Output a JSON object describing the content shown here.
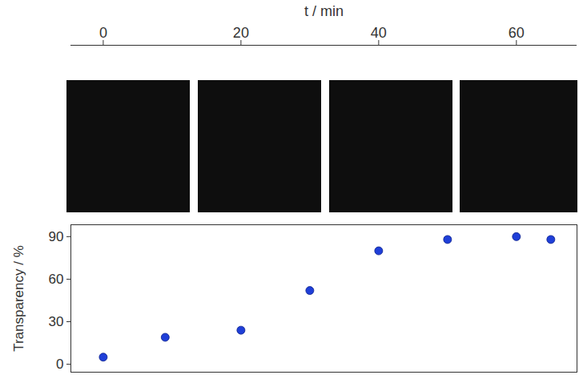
{
  "chart_data": {
    "type": "scatter",
    "x_label": "t / min",
    "y_label": "Transparency / %",
    "x": [
      0,
      9,
      20,
      30,
      40,
      50,
      60,
      65
    ],
    "values": [
      5,
      19,
      24,
      52,
      80,
      88,
      90,
      88
    ],
    "color": "#1f3fd8",
    "marker": "circle",
    "xlim": [
      -4.7,
      68.8
    ],
    "ylim": [
      -5.6,
      98.4
    ],
    "xticks": [
      0,
      20,
      40,
      60
    ],
    "yticks": [
      0,
      30,
      60,
      90
    ],
    "grid": false
  }
}
